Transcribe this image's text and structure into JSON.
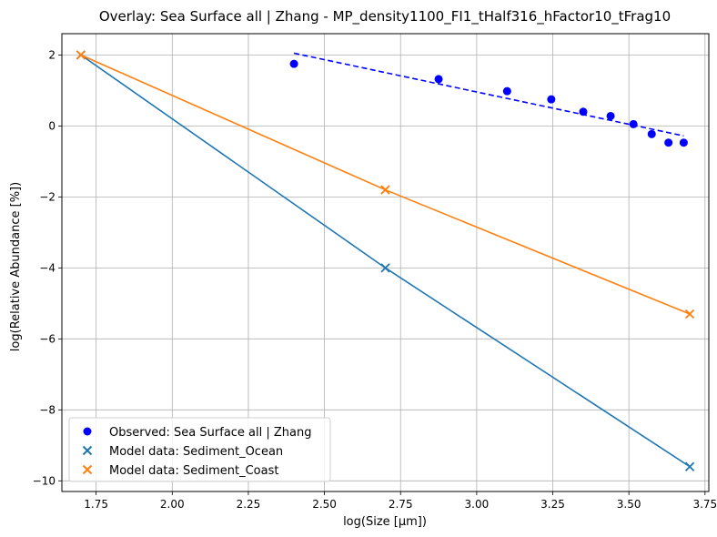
{
  "chart_data": {
    "type": "scatter",
    "title": "Overlay: Sea Surface all | Zhang - MP_density1100_FI1_tHalf316_hFactor10_tFrag10",
    "xlabel": "log(Size [μm])",
    "ylabel": "log(Relative Abundance [%])",
    "xlim": [
      1.6375,
      3.7625
    ],
    "ylim": [
      -10.3,
      2.6
    ],
    "x_ticks": [
      1.75,
      2.0,
      2.25,
      2.5,
      2.75,
      3.0,
      3.25,
      3.5,
      3.75
    ],
    "x_tick_labels": [
      "1.75",
      "2.00",
      "2.25",
      "2.50",
      "2.75",
      "3.00",
      "3.25",
      "3.50",
      "3.75"
    ],
    "y_ticks": [
      2,
      0,
      -2,
      -4,
      -6,
      -8,
      -10
    ],
    "y_tick_labels": [
      "2",
      "0",
      "−2",
      "−4",
      "−6",
      "−8",
      "−10"
    ],
    "grid": true,
    "legend_position": "lower-left",
    "series": [
      {
        "name": "Observed: Sea Surface all | Zhang",
        "kind": "scatter",
        "marker": "circle",
        "color": "#0000ff",
        "x": [
          2.4,
          2.875,
          3.1,
          3.245,
          3.35,
          3.44,
          3.515,
          3.575,
          3.63,
          3.68
        ],
        "y": [
          1.75,
          1.32,
          0.98,
          0.75,
          0.4,
          0.28,
          0.05,
          -0.23,
          -0.47,
          -0.47
        ]
      },
      {
        "name": "Observed fit",
        "kind": "line",
        "dash": "dashed",
        "color": "#0000ff",
        "x": [
          2.4,
          3.68
        ],
        "y": [
          2.05,
          -0.28
        ]
      },
      {
        "name": "Model data: Sediment_Ocean",
        "kind": "scatter-line",
        "marker": "x",
        "color": "#1f77b4",
        "x": [
          1.7,
          2.7,
          3.7
        ],
        "y": [
          2.0,
          -4.0,
          -9.6
        ]
      },
      {
        "name": "Model data: Sediment_Coast",
        "kind": "scatter-line",
        "marker": "x",
        "color": "#ff7f0e",
        "x": [
          1.7,
          2.7,
          3.7
        ],
        "y": [
          2.0,
          -1.8,
          -5.3
        ]
      }
    ],
    "legend": [
      {
        "label": "Observed: Sea Surface all | Zhang",
        "marker": "circle",
        "color": "#0000ff"
      },
      {
        "label": "Model data: Sediment_Ocean",
        "marker": "x",
        "color": "#1f77b4"
      },
      {
        "label": "Model data: Sediment_Coast",
        "marker": "x",
        "color": "#ff7f0e"
      }
    ]
  }
}
